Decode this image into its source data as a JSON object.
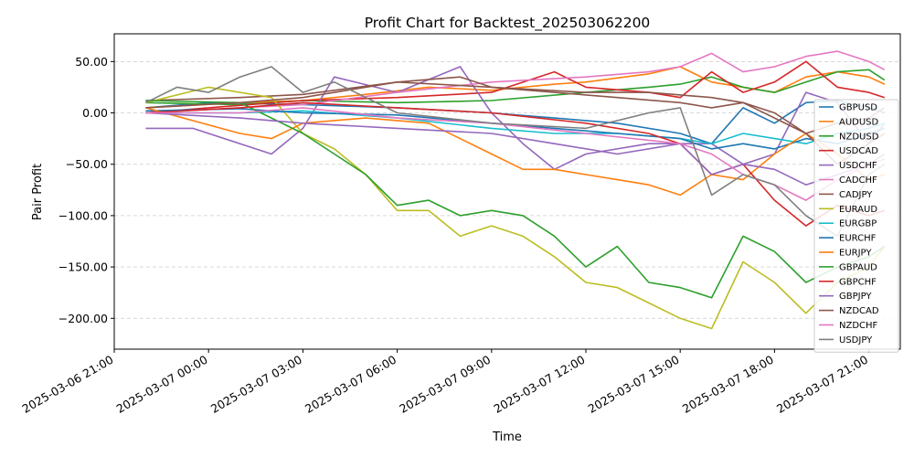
{
  "chart_data": {
    "type": "line",
    "title": "Profit Chart for Backtest_202503062200",
    "xlabel": "Time",
    "ylabel": "Pair Profit",
    "xlim": [
      "2025-03-06 21:00",
      "2025-03-07 22:00"
    ],
    "ylim": [
      -230,
      77
    ],
    "x_ticks": [
      "2025-03-06 21:00",
      "2025-03-07 00:00",
      "2025-03-07 03:00",
      "2025-03-07 06:00",
      "2025-03-07 09:00",
      "2025-03-07 12:00",
      "2025-03-07 15:00",
      "2025-03-07 18:00",
      "2025-03-07 21:00"
    ],
    "y_ticks": [
      50,
      0,
      -50,
      -100,
      -150,
      -200
    ],
    "y_tick_labels": [
      "50.00",
      "0.00",
      "−50.00",
      "−100.00",
      "−150.00",
      "−200.00"
    ],
    "grid": "horizontal-dashed",
    "legend_position": "right",
    "series": [
      {
        "name": "GBPUSD",
        "color": "#1f77b4",
        "times": [
          "2025-03-06 22:00",
          "2025-03-07 00:00",
          "2025-03-07 03:00",
          "2025-03-07 06:00",
          "2025-03-07 09:00",
          "2025-03-07 11:00",
          "2025-03-07 13:00",
          "2025-03-07 15:00",
          "2025-03-07 16:00",
          "2025-03-07 17:00",
          "2025-03-07 18:00",
          "2025-03-07 19:00",
          "2025-03-07 20:00",
          "2025-03-07 21:00",
          "2025-03-07 21:30"
        ],
        "values": [
          5,
          10,
          8,
          5,
          0,
          -5,
          -10,
          -20,
          -30,
          5,
          -10,
          10,
          12,
          5,
          0
        ]
      },
      {
        "name": "AUDUSD",
        "color": "#ff7f0e",
        "times": [
          "2025-03-06 22:00",
          "2025-03-07 01:00",
          "2025-03-07 03:00",
          "2025-03-07 05:00",
          "2025-03-07 07:00",
          "2025-03-07 09:00",
          "2025-03-07 11:00",
          "2025-03-07 12:00",
          "2025-03-07 14:00",
          "2025-03-07 15:00",
          "2025-03-07 16:00",
          "2025-03-07 17:00",
          "2025-03-07 18:00",
          "2025-03-07 19:00",
          "2025-03-07 20:00",
          "2025-03-07 21:00",
          "2025-03-07 21:30"
        ],
        "values": [
          5,
          10,
          12,
          18,
          25,
          22,
          28,
          30,
          38,
          45,
          30,
          25,
          20,
          35,
          40,
          35,
          28
        ]
      },
      {
        "name": "NZDUSD",
        "color": "#2ca02c",
        "times": [
          "2025-03-06 22:00",
          "2025-03-07 01:00",
          "2025-03-07 03:00",
          "2025-03-07 06:00",
          "2025-03-07 09:00",
          "2025-03-07 12:00",
          "2025-03-07 14:00",
          "2025-03-07 15:00",
          "2025-03-07 16:00",
          "2025-03-07 17:00",
          "2025-03-07 18:00",
          "2025-03-07 19:00",
          "2025-03-07 20:00",
          "2025-03-07 21:00",
          "2025-03-07 21:30"
        ],
        "values": [
          10,
          8,
          12,
          10,
          12,
          20,
          25,
          28,
          35,
          25,
          20,
          30,
          40,
          42,
          32
        ]
      },
      {
        "name": "USDCAD",
        "color": "#d62728",
        "times": [
          "2025-03-06 22:00",
          "2025-03-07 00:00",
          "2025-03-07 03:00",
          "2025-03-07 06:00",
          "2025-03-07 09:00",
          "2025-03-07 11:00",
          "2025-03-07 12:00",
          "2025-03-07 14:00",
          "2025-03-07 15:00",
          "2025-03-07 16:00",
          "2025-03-07 17:00",
          "2025-03-07 18:00",
          "2025-03-07 19:00",
          "2025-03-07 20:00",
          "2025-03-07 21:00",
          "2025-03-07 21:30"
        ],
        "values": [
          0,
          5,
          12,
          15,
          20,
          40,
          25,
          20,
          15,
          40,
          20,
          30,
          50,
          25,
          20,
          15
        ]
      },
      {
        "name": "USDCHF",
        "color": "#9467bd",
        "times": [
          "2025-03-06 22:00",
          "2025-03-06 23:30",
          "2025-03-07 01:00",
          "2025-03-07 02:00",
          "2025-03-07 03:00",
          "2025-03-07 04:00",
          "2025-03-07 06:00",
          "2025-03-07 08:00",
          "2025-03-07 09:00",
          "2025-03-07 10:00",
          "2025-03-07 11:00",
          "2025-03-07 12:00",
          "2025-03-07 14:00",
          "2025-03-07 16:00",
          "2025-03-07 17:00",
          "2025-03-07 18:00",
          "2025-03-07 19:00",
          "2025-03-07 20:00",
          "2025-03-07 21:00",
          "2025-03-07 21:30"
        ],
        "values": [
          -15,
          -15,
          -30,
          -40,
          -15,
          35,
          20,
          45,
          0,
          -30,
          -55,
          -40,
          -30,
          -30,
          -50,
          -40,
          20,
          10,
          -30,
          -10
        ]
      },
      {
        "name": "CADCHF",
        "color": "#e377c2",
        "times": [
          "2025-03-06 22:00",
          "2025-03-07 01:00",
          "2025-03-07 03:00",
          "2025-03-07 06:00",
          "2025-03-07 09:00",
          "2025-03-07 12:00",
          "2025-03-07 14:00",
          "2025-03-07 15:00",
          "2025-03-07 16:00",
          "2025-03-07 17:00",
          "2025-03-07 18:00",
          "2025-03-07 19:00",
          "2025-03-07 20:00",
          "2025-03-07 21:00",
          "2025-03-07 21:30"
        ],
        "values": [
          0,
          5,
          8,
          20,
          30,
          35,
          40,
          45,
          58,
          40,
          45,
          55,
          60,
          50,
          42
        ]
      },
      {
        "name": "CADJPY",
        "color": "#8c564b",
        "times": [
          "2025-03-06 22:00",
          "2025-03-07 01:00",
          "2025-03-07 03:00",
          "2025-03-07 06:00",
          "2025-03-07 08:00",
          "2025-03-07 09:00",
          "2025-03-07 11:00",
          "2025-03-07 13:00",
          "2025-03-07 15:00",
          "2025-03-07 16:00",
          "2025-03-07 17:00",
          "2025-03-07 18:00",
          "2025-03-07 19:00",
          "2025-03-07 20:00",
          "2025-03-07 21:00",
          "2025-03-07 21:30"
        ],
        "values": [
          12,
          15,
          18,
          30,
          35,
          25,
          20,
          15,
          10,
          5,
          10,
          0,
          -20,
          -10,
          -5,
          5
        ]
      },
      {
        "name": "EURAUD",
        "color": "#bcbd22",
        "times": [
          "2025-03-06 22:00",
          "2025-03-07 00:00",
          "2025-03-07 02:00",
          "2025-03-07 03:00",
          "2025-03-07 04:00",
          "2025-03-07 05:00",
          "2025-03-07 06:00",
          "2025-03-07 07:00",
          "2025-03-07 08:00",
          "2025-03-07 09:00",
          "2025-03-07 10:00",
          "2025-03-07 11:00",
          "2025-03-07 12:00",
          "2025-03-07 13:00",
          "2025-03-07 14:00",
          "2025-03-07 15:00",
          "2025-03-07 16:00",
          "2025-03-07 17:00",
          "2025-03-07 18:00",
          "2025-03-07 19:00",
          "2025-03-07 20:00",
          "2025-03-07 21:00",
          "2025-03-07 21:30"
        ],
        "values": [
          10,
          25,
          15,
          -20,
          -35,
          -60,
          -95,
          -95,
          -120,
          -110,
          -120,
          -140,
          -165,
          -170,
          -185,
          -200,
          -210,
          -145,
          -165,
          -195,
          -165,
          -150,
          -130
        ]
      },
      {
        "name": "EURGBP",
        "color": "#17becf",
        "times": [
          "2025-03-06 22:00",
          "2025-03-07 01:00",
          "2025-03-07 03:00",
          "2025-03-07 06:00",
          "2025-03-07 09:00",
          "2025-03-07 11:00",
          "2025-03-07 13:00",
          "2025-03-07 15:00",
          "2025-03-07 16:00",
          "2025-03-07 17:00",
          "2025-03-07 18:00",
          "2025-03-07 19:00",
          "2025-03-07 20:00",
          "2025-03-07 21:00",
          "2025-03-07 21:30"
        ],
        "values": [
          0,
          0,
          2,
          -5,
          -15,
          -20,
          -20,
          -25,
          -30,
          -20,
          -25,
          -30,
          -20,
          -15,
          -10
        ]
      },
      {
        "name": "EURCHF",
        "color": "#1f77b4",
        "times": [
          "2025-03-06 22:00",
          "2025-03-07 01:00",
          "2025-03-07 03:00",
          "2025-03-07 06:00",
          "2025-03-07 09:00",
          "2025-03-07 11:00",
          "2025-03-07 13:00",
          "2025-03-07 15:00",
          "2025-03-07 16:00",
          "2025-03-07 17:00",
          "2025-03-07 18:00",
          "2025-03-07 19:00",
          "2025-03-07 20:00",
          "2025-03-07 21:00",
          "2025-03-07 21:30"
        ],
        "values": [
          2,
          4,
          0,
          -2,
          -10,
          -15,
          -20,
          -25,
          -35,
          -30,
          -35,
          -25,
          -30,
          -20,
          -15
        ]
      },
      {
        "name": "EURJPY",
        "color": "#ff7f0e",
        "times": [
          "2025-03-06 22:00",
          "2025-03-07 01:00",
          "2025-03-07 02:00",
          "2025-03-07 03:00",
          "2025-03-07 05:00",
          "2025-03-07 07:00",
          "2025-03-07 09:00",
          "2025-03-07 10:00",
          "2025-03-07 11:00",
          "2025-03-07 12:00",
          "2025-03-07 13:00",
          "2025-03-07 14:00",
          "2025-03-07 15:00",
          "2025-03-07 16:00",
          "2025-03-07 17:00",
          "2025-03-07 18:00",
          "2025-03-07 19:00",
          "2025-03-07 20:00",
          "2025-03-07 21:00",
          "2025-03-07 21:30"
        ],
        "values": [
          5,
          -20,
          -25,
          -10,
          -5,
          -10,
          -40,
          -55,
          -55,
          -60,
          -65,
          -70,
          -80,
          -60,
          -65,
          -40,
          -20,
          -40,
          -65,
          -60
        ]
      },
      {
        "name": "GBPAUD",
        "color": "#2ca02c",
        "times": [
          "2025-03-06 22:00",
          "2025-03-07 01:00",
          "2025-03-07 03:00",
          "2025-03-07 04:00",
          "2025-03-07 05:00",
          "2025-03-07 06:00",
          "2025-03-07 07:00",
          "2025-03-07 08:00",
          "2025-03-07 09:00",
          "2025-03-07 10:00",
          "2025-03-07 11:00",
          "2025-03-07 12:00",
          "2025-03-07 13:00",
          "2025-03-07 14:00",
          "2025-03-07 15:00",
          "2025-03-07 16:00",
          "2025-03-07 17:00",
          "2025-03-07 18:00",
          "2025-03-07 19:00",
          "2025-03-07 20:00",
          "2025-03-07 21:00",
          "2025-03-07 21:30"
        ],
        "values": [
          12,
          10,
          -20,
          -40,
          -60,
          -90,
          -85,
          -100,
          -95,
          -100,
          -120,
          -150,
          -130,
          -165,
          -170,
          -180,
          -120,
          -135,
          -165,
          -150,
          -140,
          -130
        ]
      },
      {
        "name": "GBPCHF",
        "color": "#d62728",
        "times": [
          "2025-03-06 22:00",
          "2025-03-07 01:00",
          "2025-03-07 03:00",
          "2025-03-07 06:00",
          "2025-03-07 09:00",
          "2025-03-07 12:00",
          "2025-03-07 14:00",
          "2025-03-07 15:00",
          "2025-03-07 16:00",
          "2025-03-07 17:00",
          "2025-03-07 18:00",
          "2025-03-07 19:00",
          "2025-03-07 20:00",
          "2025-03-07 21:00",
          "2025-03-07 21:30"
        ],
        "values": [
          0,
          5,
          10,
          5,
          0,
          -10,
          -20,
          -30,
          -60,
          -50,
          -85,
          -110,
          -90,
          -100,
          -95
        ]
      },
      {
        "name": "GBPJPY",
        "color": "#9467bd",
        "times": [
          "2025-03-06 22:00",
          "2025-03-07 01:00",
          "2025-03-07 03:00",
          "2025-03-07 06:00",
          "2025-03-07 09:00",
          "2025-03-07 11:00",
          "2025-03-07 13:00",
          "2025-03-07 15:00",
          "2025-03-07 16:00",
          "2025-03-07 17:00",
          "2025-03-07 18:00",
          "2025-03-07 19:00",
          "2025-03-07 20:00",
          "2025-03-07 21:00",
          "2025-03-07 21:30"
        ],
        "values": [
          0,
          -5,
          -10,
          -15,
          -20,
          -30,
          -40,
          -30,
          -60,
          -50,
          -55,
          -70,
          -60,
          -50,
          -40
        ]
      },
      {
        "name": "NZDCAD",
        "color": "#8c564b",
        "times": [
          "2025-03-06 22:00",
          "2025-03-07 01:00",
          "2025-03-07 03:00",
          "2025-03-07 06:00",
          "2025-03-07 09:00",
          "2025-03-07 12:00",
          "2025-03-07 14:00",
          "2025-03-07 16:00",
          "2025-03-07 17:00",
          "2025-03-07 18:00",
          "2025-03-07 19:00",
          "2025-03-07 20:00",
          "2025-03-07 21:00",
          "2025-03-07 21:30"
        ],
        "values": [
          5,
          10,
          15,
          30,
          25,
          20,
          20,
          15,
          10,
          -5,
          -20,
          -50,
          -30,
          -20
        ]
      },
      {
        "name": "NZDCHF",
        "color": "#e377c2",
        "times": [
          "2025-03-06 22:00",
          "2025-03-07 01:00",
          "2025-03-07 03:00",
          "2025-03-07 06:00",
          "2025-03-07 09:00",
          "2025-03-07 12:00",
          "2025-03-07 15:00",
          "2025-03-07 16:00",
          "2025-03-07 17:00",
          "2025-03-07 18:00",
          "2025-03-07 19:00",
          "2025-03-07 20:00",
          "2025-03-07 21:00",
          "2025-03-07 21:30"
        ],
        "values": [
          0,
          0,
          5,
          -5,
          -10,
          -20,
          -30,
          -40,
          -60,
          -70,
          -85,
          -65,
          -50,
          -45
        ]
      },
      {
        "name": "USDJPY",
        "color": "#7f7f7f",
        "times": [
          "2025-03-06 22:00",
          "2025-03-06 23:00",
          "2025-03-07 00:00",
          "2025-03-07 01:00",
          "2025-03-07 02:00",
          "2025-03-07 03:00",
          "2025-03-07 04:00",
          "2025-03-07 06:00",
          "2025-03-07 09:00",
          "2025-03-07 12:00",
          "2025-03-07 14:00",
          "2025-03-07 15:00",
          "2025-03-07 16:00",
          "2025-03-07 17:00",
          "2025-03-07 18:00",
          "2025-03-07 19:00",
          "2025-03-07 20:00",
          "2025-03-07 21:00",
          "2025-03-07 21:30"
        ],
        "values": [
          10,
          25,
          20,
          35,
          45,
          20,
          30,
          0,
          -10,
          -15,
          0,
          5,
          -80,
          -60,
          -70,
          -100,
          -120,
          -60,
          -50
        ]
      }
    ]
  }
}
